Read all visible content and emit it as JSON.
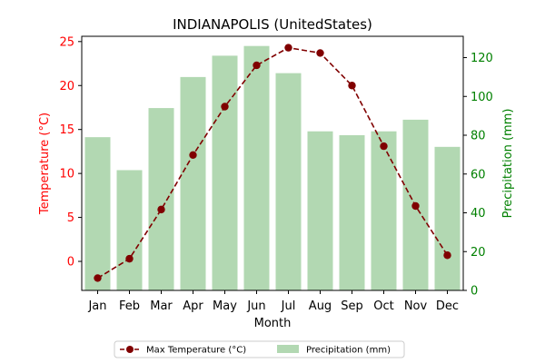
{
  "chart_data": {
    "type": "bar+line",
    "title": "INDIANAPOLIS (UnitedStates)",
    "xlabel": "Month",
    "ylabel_left": "Temperature (°C)",
    "ylabel_right": "Precipitation (mm)",
    "categories": [
      "Jan",
      "Feb",
      "Mar",
      "Apr",
      "May",
      "Jun",
      "Jul",
      "Aug",
      "Sep",
      "Oct",
      "Nov",
      "Dec"
    ],
    "series": [
      {
        "name": "Max Temperature (°C)",
        "kind": "line",
        "axis": "left",
        "color": "#800000",
        "values": [
          -1.9,
          0.3,
          5.9,
          12.1,
          17.6,
          22.3,
          24.3,
          23.7,
          20.0,
          13.1,
          6.3,
          0.7
        ]
      },
      {
        "name": "Precipitation (mm)",
        "kind": "bar",
        "axis": "right",
        "color": "#b2d8b2",
        "values": [
          79,
          62,
          94,
          110,
          121,
          126,
          112,
          82,
          80,
          82,
          88,
          74
        ]
      }
    ],
    "ylim_left": [
      -3.3,
      25.6
    ],
    "yticks_left": [
      0,
      5,
      10,
      15,
      20,
      25
    ],
    "ylim_right": [
      0,
      131
    ],
    "yticks_right": [
      0,
      20,
      40,
      60,
      80,
      100,
      120
    ],
    "left_axis_color": "#ff0000",
    "right_axis_color": "#008000",
    "grid": false,
    "legend_position": "bottom-center"
  }
}
